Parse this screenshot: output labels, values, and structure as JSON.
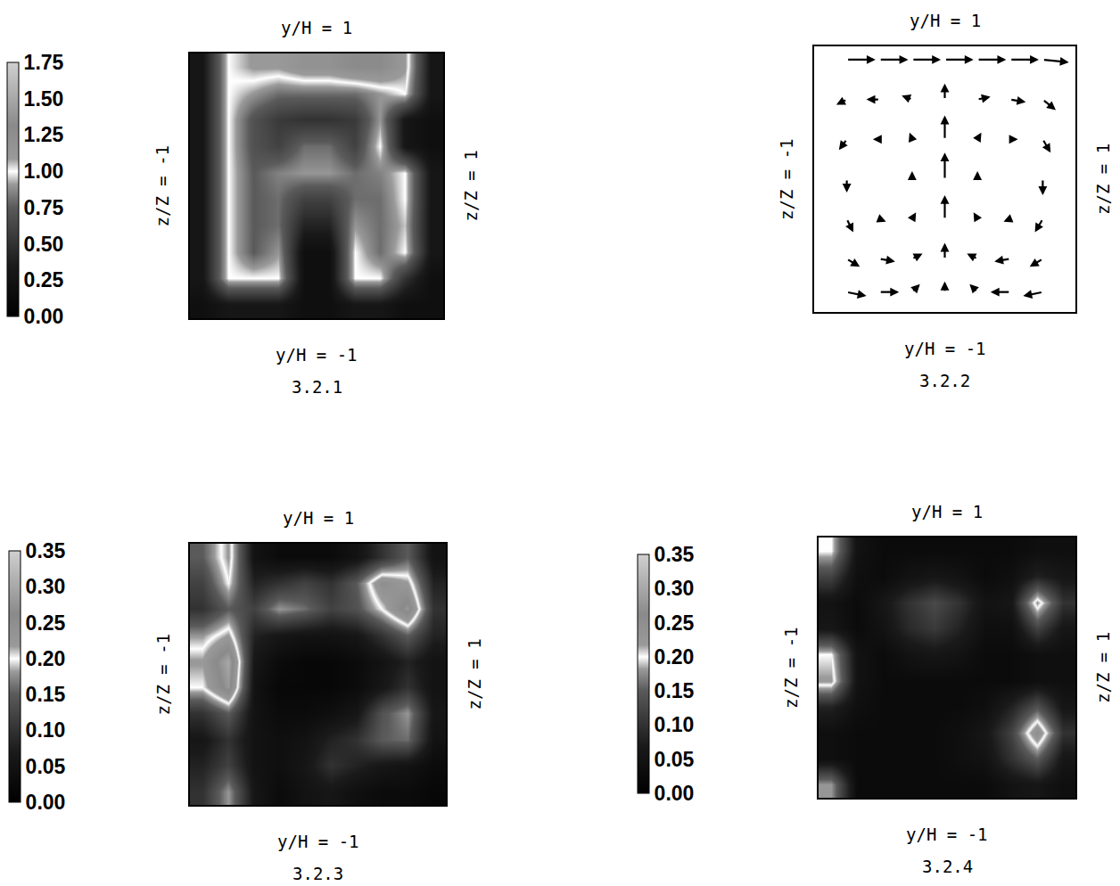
{
  "chart_data": [
    {
      "type": "heatmap",
      "caption": "3.2.1",
      "labels": {
        "top": "y/H = 1",
        "bottom": "y/H = -1",
        "left": "z/Z = -1",
        "right": "z/Z = 1"
      },
      "xlim": [
        -1,
        1
      ],
      "ylim": [
        -1,
        1
      ],
      "tick_labels": false,
      "x": [
        -0.9,
        -0.7,
        -0.5,
        -0.3,
        -0.1,
        0.1,
        0.3,
        0.5,
        0.7,
        0.9
      ],
      "y": [
        -0.9,
        -0.7,
        -0.5,
        -0.3,
        -0.1,
        0.1,
        0.3,
        0.5,
        0.7,
        0.9
      ],
      "cells": [
        [
          0.2,
          0.3,
          0.3,
          0.3,
          0.2,
          0.2,
          0.3,
          0.3,
          0.2,
          0.2
        ],
        [
          0.3,
          1.0,
          1.0,
          1.0,
          0.2,
          0.2,
          1.0,
          1.0,
          0.5,
          0.2
        ],
        [
          0.3,
          1.0,
          0.75,
          0.9,
          0.2,
          0.2,
          1.0,
          0.8,
          1.0,
          0.3
        ],
        [
          0.3,
          1.0,
          0.75,
          0.8,
          0.4,
          0.4,
          0.9,
          0.8,
          0.95,
          0.3
        ],
        [
          0.3,
          1.0,
          0.75,
          0.8,
          0.6,
          0.6,
          0.8,
          0.8,
          1.0,
          0.3
        ],
        [
          0.3,
          1.0,
          0.75,
          0.85,
          0.9,
          0.9,
          0.8,
          0.85,
          1.0,
          0.3
        ],
        [
          0.3,
          1.0,
          0.7,
          0.6,
          0.8,
          0.8,
          0.6,
          1.0,
          0.3,
          0.2
        ],
        [
          0.3,
          1.0,
          0.7,
          0.55,
          0.5,
          0.5,
          0.55,
          0.9,
          0.3,
          0.2
        ],
        [
          0.3,
          1.0,
          0.9,
          0.8,
          0.8,
          0.8,
          0.8,
          0.9,
          1.0,
          0.3
        ],
        [
          0.3,
          1.0,
          1.1,
          1.1,
          1.2,
          1.2,
          1.3,
          1.3,
          1.1,
          0.3
        ]
      ],
      "color_range": [
        0,
        1.75
      ],
      "color_ticks": [
        {
          "value": 0,
          "label": "0.00"
        },
        {
          "value": 0.25,
          "label": "0.25"
        },
        {
          "value": 0.5,
          "label": "0.50"
        },
        {
          "value": 0.75,
          "label": "0.75"
        },
        {
          "value": 1,
          "label": "1.00"
        },
        {
          "value": 1.25,
          "label": "1.25"
        },
        {
          "value": 1.5,
          "label": "1.50"
        },
        {
          "value": 1.75,
          "label": "1.75"
        }
      ]
    },
    {
      "type": "vector",
      "caption": "3.2.2",
      "labels": {
        "top": "y/H = 1",
        "bottom": "y/H = -1",
        "left": "z/Z = -1",
        "right": "z/Z = 1"
      },
      "xlim": [
        -1,
        1
      ],
      "ylim": [
        -1,
        1
      ],
      "tick_labels": false,
      "color": "#000000",
      "arrows": [
        [
          -0.75,
          0.9,
          0.22,
          0
        ],
        [
          -0.5,
          0.9,
          0.22,
          0
        ],
        [
          -0.25,
          0.9,
          0.22,
          0
        ],
        [
          0,
          0.9,
          0.22,
          0
        ],
        [
          0.25,
          0.9,
          0.22,
          0
        ],
        [
          0.5,
          0.9,
          0.22,
          0
        ],
        [
          0.75,
          0.9,
          0.2,
          -0.02
        ],
        [
          -0.75,
          0.6,
          -0.08,
          -0.04
        ],
        [
          -0.5,
          0.6,
          -0.1,
          0
        ],
        [
          -0.25,
          0.6,
          -0.08,
          0.03
        ],
        [
          0,
          0.6,
          0,
          0.12
        ],
        [
          0.25,
          0.6,
          0.1,
          0.02
        ],
        [
          0.5,
          0.6,
          0.12,
          -0.02
        ],
        [
          0.75,
          0.6,
          0.1,
          -0.08
        ],
        [
          -0.75,
          0.3,
          -0.06,
          -0.08
        ],
        [
          -0.5,
          0.3,
          -0.05,
          0
        ],
        [
          -0.25,
          0.3,
          -0.02,
          0.05
        ],
        [
          0,
          0.3,
          0,
          0.18
        ],
        [
          0.25,
          0.3,
          0.03,
          0.05
        ],
        [
          0.5,
          0.3,
          0.06,
          0
        ],
        [
          0.75,
          0.3,
          0.06,
          -0.1
        ],
        [
          -0.75,
          0,
          0,
          -0.1
        ],
        [
          -0.5,
          0,
          0,
          -0.02
        ],
        [
          -0.25,
          0,
          0,
          0.06
        ],
        [
          0,
          0,
          0,
          0.2
        ],
        [
          0.25,
          0,
          0,
          0.06
        ],
        [
          0.5,
          0,
          0,
          -0.02
        ],
        [
          0.75,
          0,
          0,
          -0.12
        ],
        [
          -0.75,
          -0.3,
          0.05,
          -0.1
        ],
        [
          -0.5,
          -0.3,
          0.05,
          -0.02
        ],
        [
          -0.25,
          -0.3,
          0.03,
          0.05
        ],
        [
          0,
          -0.3,
          0,
          0.18
        ],
        [
          0.25,
          -0.3,
          -0.03,
          0.05
        ],
        [
          0.5,
          -0.3,
          -0.05,
          -0.02
        ],
        [
          0.75,
          -0.3,
          -0.06,
          -0.1
        ],
        [
          -0.75,
          -0.6,
          0.1,
          -0.06
        ],
        [
          -0.5,
          -0.6,
          0.12,
          -0.02
        ],
        [
          -0.25,
          -0.6,
          0.08,
          0.04
        ],
        [
          0,
          -0.6,
          0,
          0.12
        ],
        [
          0.25,
          -0.6,
          -0.08,
          0.04
        ],
        [
          0.5,
          -0.6,
          -0.12,
          -0.02
        ],
        [
          0.75,
          -0.6,
          -0.1,
          -0.06
        ],
        [
          -0.75,
          -0.85,
          0.15,
          -0.03
        ],
        [
          -0.5,
          -0.85,
          0.15,
          0
        ],
        [
          -0.25,
          -0.85,
          0.06,
          0.06
        ],
        [
          0,
          -0.85,
          0,
          0.08
        ],
        [
          0.25,
          -0.85,
          -0.06,
          0.06
        ],
        [
          0.5,
          -0.85,
          -0.15,
          0
        ],
        [
          0.75,
          -0.85,
          -0.15,
          -0.03
        ]
      ]
    },
    {
      "type": "heatmap",
      "caption": "3.2.3",
      "labels": {
        "top": "y/H = 1",
        "bottom": "y/H = -1",
        "left": "z/Z = -1",
        "right": "z/Z = 1"
      },
      "xlim": [
        -1,
        1
      ],
      "ylim": [
        -1,
        1
      ],
      "tick_labels": false,
      "x": [
        -0.9,
        -0.7,
        -0.5,
        -0.3,
        -0.1,
        0.1,
        0.3,
        0.5,
        0.7,
        0.9
      ],
      "y": [
        -0.9,
        -0.7,
        -0.5,
        -0.3,
        -0.1,
        0.1,
        0.3,
        0.5,
        0.7,
        0.9
      ],
      "cells": [
        [
          0.1,
          0.18,
          0.06,
          0.03,
          0.05,
          0.06,
          0.04,
          0.03,
          0.03,
          0.02
        ],
        [
          0.08,
          0.12,
          0.05,
          0.04,
          0.06,
          0.1,
          0.08,
          0.06,
          0.05,
          0.03
        ],
        [
          0.06,
          0.1,
          0.05,
          0.04,
          0.05,
          0.08,
          0.1,
          0.15,
          0.16,
          0.05
        ],
        [
          0.1,
          0.15,
          0.05,
          0.03,
          0.03,
          0.04,
          0.06,
          0.14,
          0.18,
          0.06
        ],
        [
          0.2,
          0.28,
          0.05,
          0.02,
          0.02,
          0.02,
          0.03,
          0.06,
          0.1,
          0.05
        ],
        [
          0.22,
          0.3,
          0.06,
          0.03,
          0.02,
          0.02,
          0.03,
          0.05,
          0.08,
          0.05
        ],
        [
          0.18,
          0.22,
          0.08,
          0.06,
          0.05,
          0.05,
          0.06,
          0.1,
          0.15,
          0.08
        ],
        [
          0.1,
          0.15,
          0.12,
          0.18,
          0.16,
          0.12,
          0.14,
          0.2,
          0.28,
          0.1
        ],
        [
          0.12,
          0.2,
          0.08,
          0.1,
          0.12,
          0.1,
          0.15,
          0.25,
          0.22,
          0.08
        ],
        [
          0.15,
          0.22,
          0.05,
          0.03,
          0.03,
          0.03,
          0.05,
          0.1,
          0.15,
          0.05
        ]
      ],
      "color_range": [
        0,
        0.35
      ],
      "color_ticks": [
        {
          "value": 0,
          "label": "0.00"
        },
        {
          "value": 0.05,
          "label": "0.05"
        },
        {
          "value": 0.1,
          "label": "0.10"
        },
        {
          "value": 0.15,
          "label": "0.15"
        },
        {
          "value": 0.2,
          "label": "0.20"
        },
        {
          "value": 0.25,
          "label": "0.25"
        },
        {
          "value": 0.3,
          "label": "0.30"
        },
        {
          "value": 0.35,
          "label": "0.35"
        }
      ]
    },
    {
      "type": "heatmap",
      "caption": "3.2.4",
      "labels": {
        "top": "y/H = 1",
        "bottom": "y/H = -1",
        "left": "z/Z = -1",
        "right": "z/Z = 1"
      },
      "xlim": [
        -1,
        1
      ],
      "ylim": [
        -1,
        1
      ],
      "tick_labels": false,
      "x": [
        -0.9,
        -0.7,
        -0.5,
        -0.3,
        -0.1,
        0.1,
        0.3,
        0.5,
        0.7,
        0.9
      ],
      "y": [
        -0.9,
        -0.7,
        -0.5,
        -0.3,
        -0.1,
        0.1,
        0.3,
        0.5,
        0.7,
        0.9
      ],
      "cells": [
        [
          0.18,
          0.03,
          0.03,
          0.03,
          0.03,
          0.03,
          0.03,
          0.05,
          0.06,
          0.04
        ],
        [
          0.04,
          0.03,
          0.03,
          0.03,
          0.03,
          0.04,
          0.05,
          0.1,
          0.15,
          0.06
        ],
        [
          0.04,
          0.03,
          0.03,
          0.03,
          0.03,
          0.04,
          0.06,
          0.12,
          0.25,
          0.1
        ],
        [
          0.08,
          0.04,
          0.03,
          0.03,
          0.03,
          0.03,
          0.04,
          0.08,
          0.14,
          0.06
        ],
        [
          0.22,
          0.05,
          0.03,
          0.03,
          0.03,
          0.03,
          0.03,
          0.03,
          0.04,
          0.04
        ],
        [
          0.2,
          0.05,
          0.03,
          0.05,
          0.06,
          0.05,
          0.03,
          0.03,
          0.04,
          0.04
        ],
        [
          0.06,
          0.03,
          0.05,
          0.09,
          0.11,
          0.08,
          0.04,
          0.04,
          0.12,
          0.06
        ],
        [
          0.05,
          0.03,
          0.06,
          0.1,
          0.13,
          0.1,
          0.05,
          0.06,
          0.22,
          0.1
        ],
        [
          0.12,
          0.04,
          0.03,
          0.05,
          0.06,
          0.05,
          0.03,
          0.04,
          0.08,
          0.06
        ],
        [
          0.2,
          0.05,
          0.03,
          0.03,
          0.03,
          0.03,
          0.03,
          0.03,
          0.04,
          0.04
        ]
      ],
      "color_range": [
        0,
        0.35
      ],
      "color_ticks": [
        {
          "value": 0,
          "label": "0.00"
        },
        {
          "value": 0.05,
          "label": "0.05"
        },
        {
          "value": 0.1,
          "label": "0.10"
        },
        {
          "value": 0.15,
          "label": "0.15"
        },
        {
          "value": 0.2,
          "label": "0.20"
        },
        {
          "value": 0.25,
          "label": "0.25"
        },
        {
          "value": 0.3,
          "label": "0.30"
        },
        {
          "value": 0.35,
          "label": "0.35"
        }
      ]
    }
  ]
}
